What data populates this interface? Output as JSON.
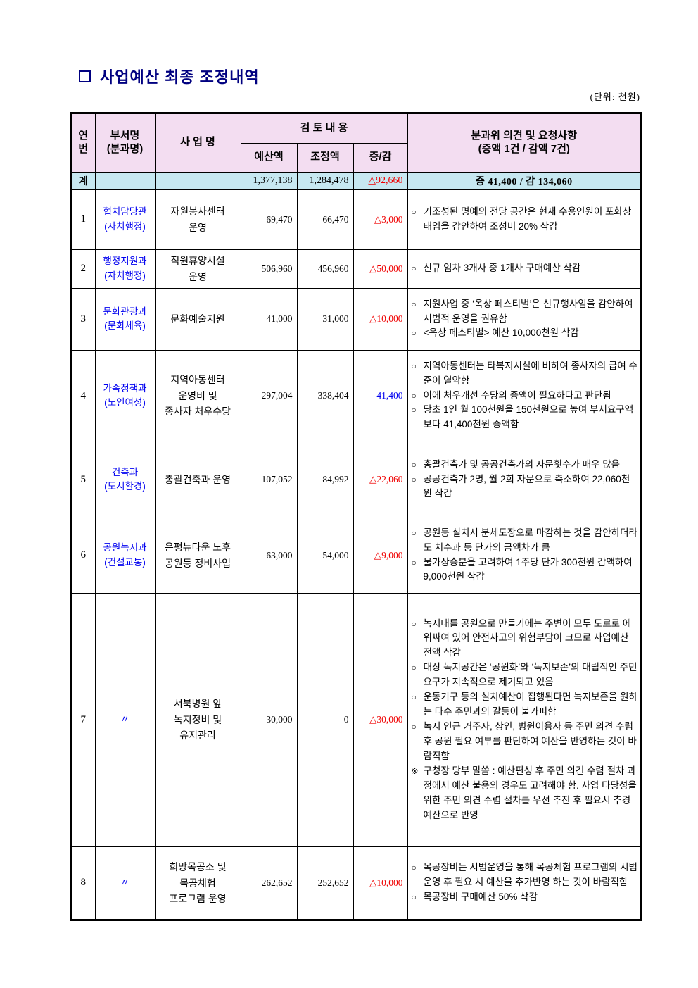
{
  "page": {
    "title": "사업예산 최종 조정내역",
    "unit_note": "(단위: 천원)"
  },
  "colors": {
    "title_navy": "#000080",
    "header_bg": "#f3ddf1",
    "total_row_bg": "#c7e8f1",
    "decrease_red": "#f00000",
    "increase_blue": "#0000f0",
    "department_blue": "#0000f0"
  },
  "table": {
    "headers": {
      "no": "연\n번",
      "dept": "부서명\n(분과명)",
      "project": "사 업 명",
      "review": "검 토 내 용",
      "budget": "예산액",
      "adjusted": "조정액",
      "change": "증/감",
      "opinion": "분과위 의견 및 요청사항\n(증액 1건 / 감액 7건)"
    },
    "total_row": {
      "label": "계",
      "budget": "1,377,138",
      "adjusted": "1,284,478",
      "change": "△92,660",
      "change_type": "decrease",
      "opinion": "증 41,400 / 감 134,060"
    },
    "rows": [
      {
        "no": "1",
        "dept": "협치담당관\n(자치행정)",
        "project": "자원봉사센터\n운영",
        "budget": "69,470",
        "adjusted": "66,470",
        "change": "△3,000",
        "change_type": "decrease",
        "opinions": [
          {
            "marker": "○",
            "text": "기조성된 명예의 전당 공간은 현재 수용인원이 포화상태임을 감안하여 조성비 20% 삭감"
          }
        ]
      },
      {
        "no": "2",
        "dept": "행정지원과\n(자치행정)",
        "project": "직원휴양시설\n운영",
        "budget": "506,960",
        "adjusted": "456,960",
        "change": "△50,000",
        "change_type": "decrease",
        "opinions": [
          {
            "marker": "○",
            "text": "신규 임차 3개사 중 1개사 구매예산 삭감"
          }
        ]
      },
      {
        "no": "3",
        "dept": "문화관광과\n(문화체육)",
        "project": "문화예술지원",
        "budget": "41,000",
        "adjusted": "31,000",
        "change": "△10,000",
        "change_type": "decrease",
        "opinions": [
          {
            "marker": "○",
            "text": "지원사업 중 ‘옥상 페스티벌’은 신규행사임을 감안하여 시범적 운영을 권유함"
          },
          {
            "marker": "○",
            "text": "<옥상 페스티벌> 예산 10,000천원 삭감"
          }
        ]
      },
      {
        "no": "4",
        "dept": "가족정책과\n(노인여성)",
        "project": "지역아동센터\n운영비 및\n종사자 처우수당",
        "budget": "297,004",
        "adjusted": "338,404",
        "change": "41,400",
        "change_type": "increase",
        "opinions": [
          {
            "marker": "○",
            "text": "지역아동센터는 타복지시설에 비하여 종사자의 급여 수준이 열악함"
          },
          {
            "marker": "○",
            "text": "이에 처우개선 수당의 증액이 필요하다고 판단됨"
          },
          {
            "marker": "○",
            "text": "당초 1인 월 100천원을 150천원으로 높여 부서요구액보다 41,400천원 증액함"
          }
        ]
      },
      {
        "no": "5",
        "dept": "건축과\n(도시환경)",
        "project": "총괄건축과 운영",
        "budget": "107,052",
        "adjusted": "84,992",
        "change": "△22,060",
        "change_type": "decrease",
        "opinions": [
          {
            "marker": "○",
            "text": "총괄건축가 및 공공건축가의 자문횟수가 매우 많음"
          },
          {
            "marker": "○",
            "text": "공공건축가 2명, 월 2회 자문으로 축소하여 22,060천원 삭감"
          }
        ]
      },
      {
        "no": "6",
        "dept": "공원녹지과\n(건설교통)",
        "project": "은평뉴타운 노후\n공원등 정비사업",
        "budget": "63,000",
        "adjusted": "54,000",
        "change": "△9,000",
        "change_type": "decrease",
        "opinions": [
          {
            "marker": "○",
            "text": "공원등 설치시 분체도장으로 마감하는 것을 감안하더라도 치수과 등 단가의 금액차가 큼"
          },
          {
            "marker": "○",
            "text": "물가상승분을 고려하여 1주당 단가 300천원 감액하여 9,000천원 삭감"
          }
        ]
      },
      {
        "no": "7",
        "dept": "〃",
        "project": "서북병원 앞\n녹지정비 및\n유지관리",
        "budget": "30,000",
        "adjusted": "0",
        "change": "△30,000",
        "change_type": "decrease",
        "opinions": [
          {
            "marker": "○",
            "text": "녹지대를 공원으로 만들기에는 주변이 모두 도로로 에워싸여 있어 안전사고의 위험부담이 크므로 사업예산 전액 삭감"
          },
          {
            "marker": "○",
            "text": "대상 녹지공간은 ‘공원화’와 ‘녹지보존’의 대립적인 주민 요구가 지속적으로 제기되고 있음"
          },
          {
            "marker": "○",
            "text": "운동기구 등의 설치예산이 집행된다면 녹지보존을 원하는 다수 주민과의 갈등이 불가피함"
          },
          {
            "marker": "○",
            "text": "녹지 인근 거주자, 상인, 병원이용자 등 주민 의견 수렴 후 공원 필요 여부를 판단하여 예산을 반영하는 것이 바람직함"
          },
          {
            "marker": "※",
            "text": "구청장 당부 말씀 : 예산편성 후 주민 의견 수렴 절차 과정에서 예산 불용의 경우도 고려해야 함. 사업 타당성을 위한 주민 의견 수렴 절차를 우선 추진 후 필요시 추경 예산으로 반영"
          }
        ]
      },
      {
        "no": "8",
        "dept": "〃",
        "project": "희망목공소 및\n목공체험\n프로그램 운영",
        "budget": "262,652",
        "adjusted": "252,652",
        "change": "△10,000",
        "change_type": "decrease",
        "opinions": [
          {
            "marker": "○",
            "text": "목공장비는 시범운영을 통해 목공체험 프로그램의 시범운영 후 필요 시 예산을 추가반영 하는 것이 바람직함"
          },
          {
            "marker": "○",
            "text": "목공장비 구매예산 50% 삭감"
          }
        ]
      }
    ]
  }
}
